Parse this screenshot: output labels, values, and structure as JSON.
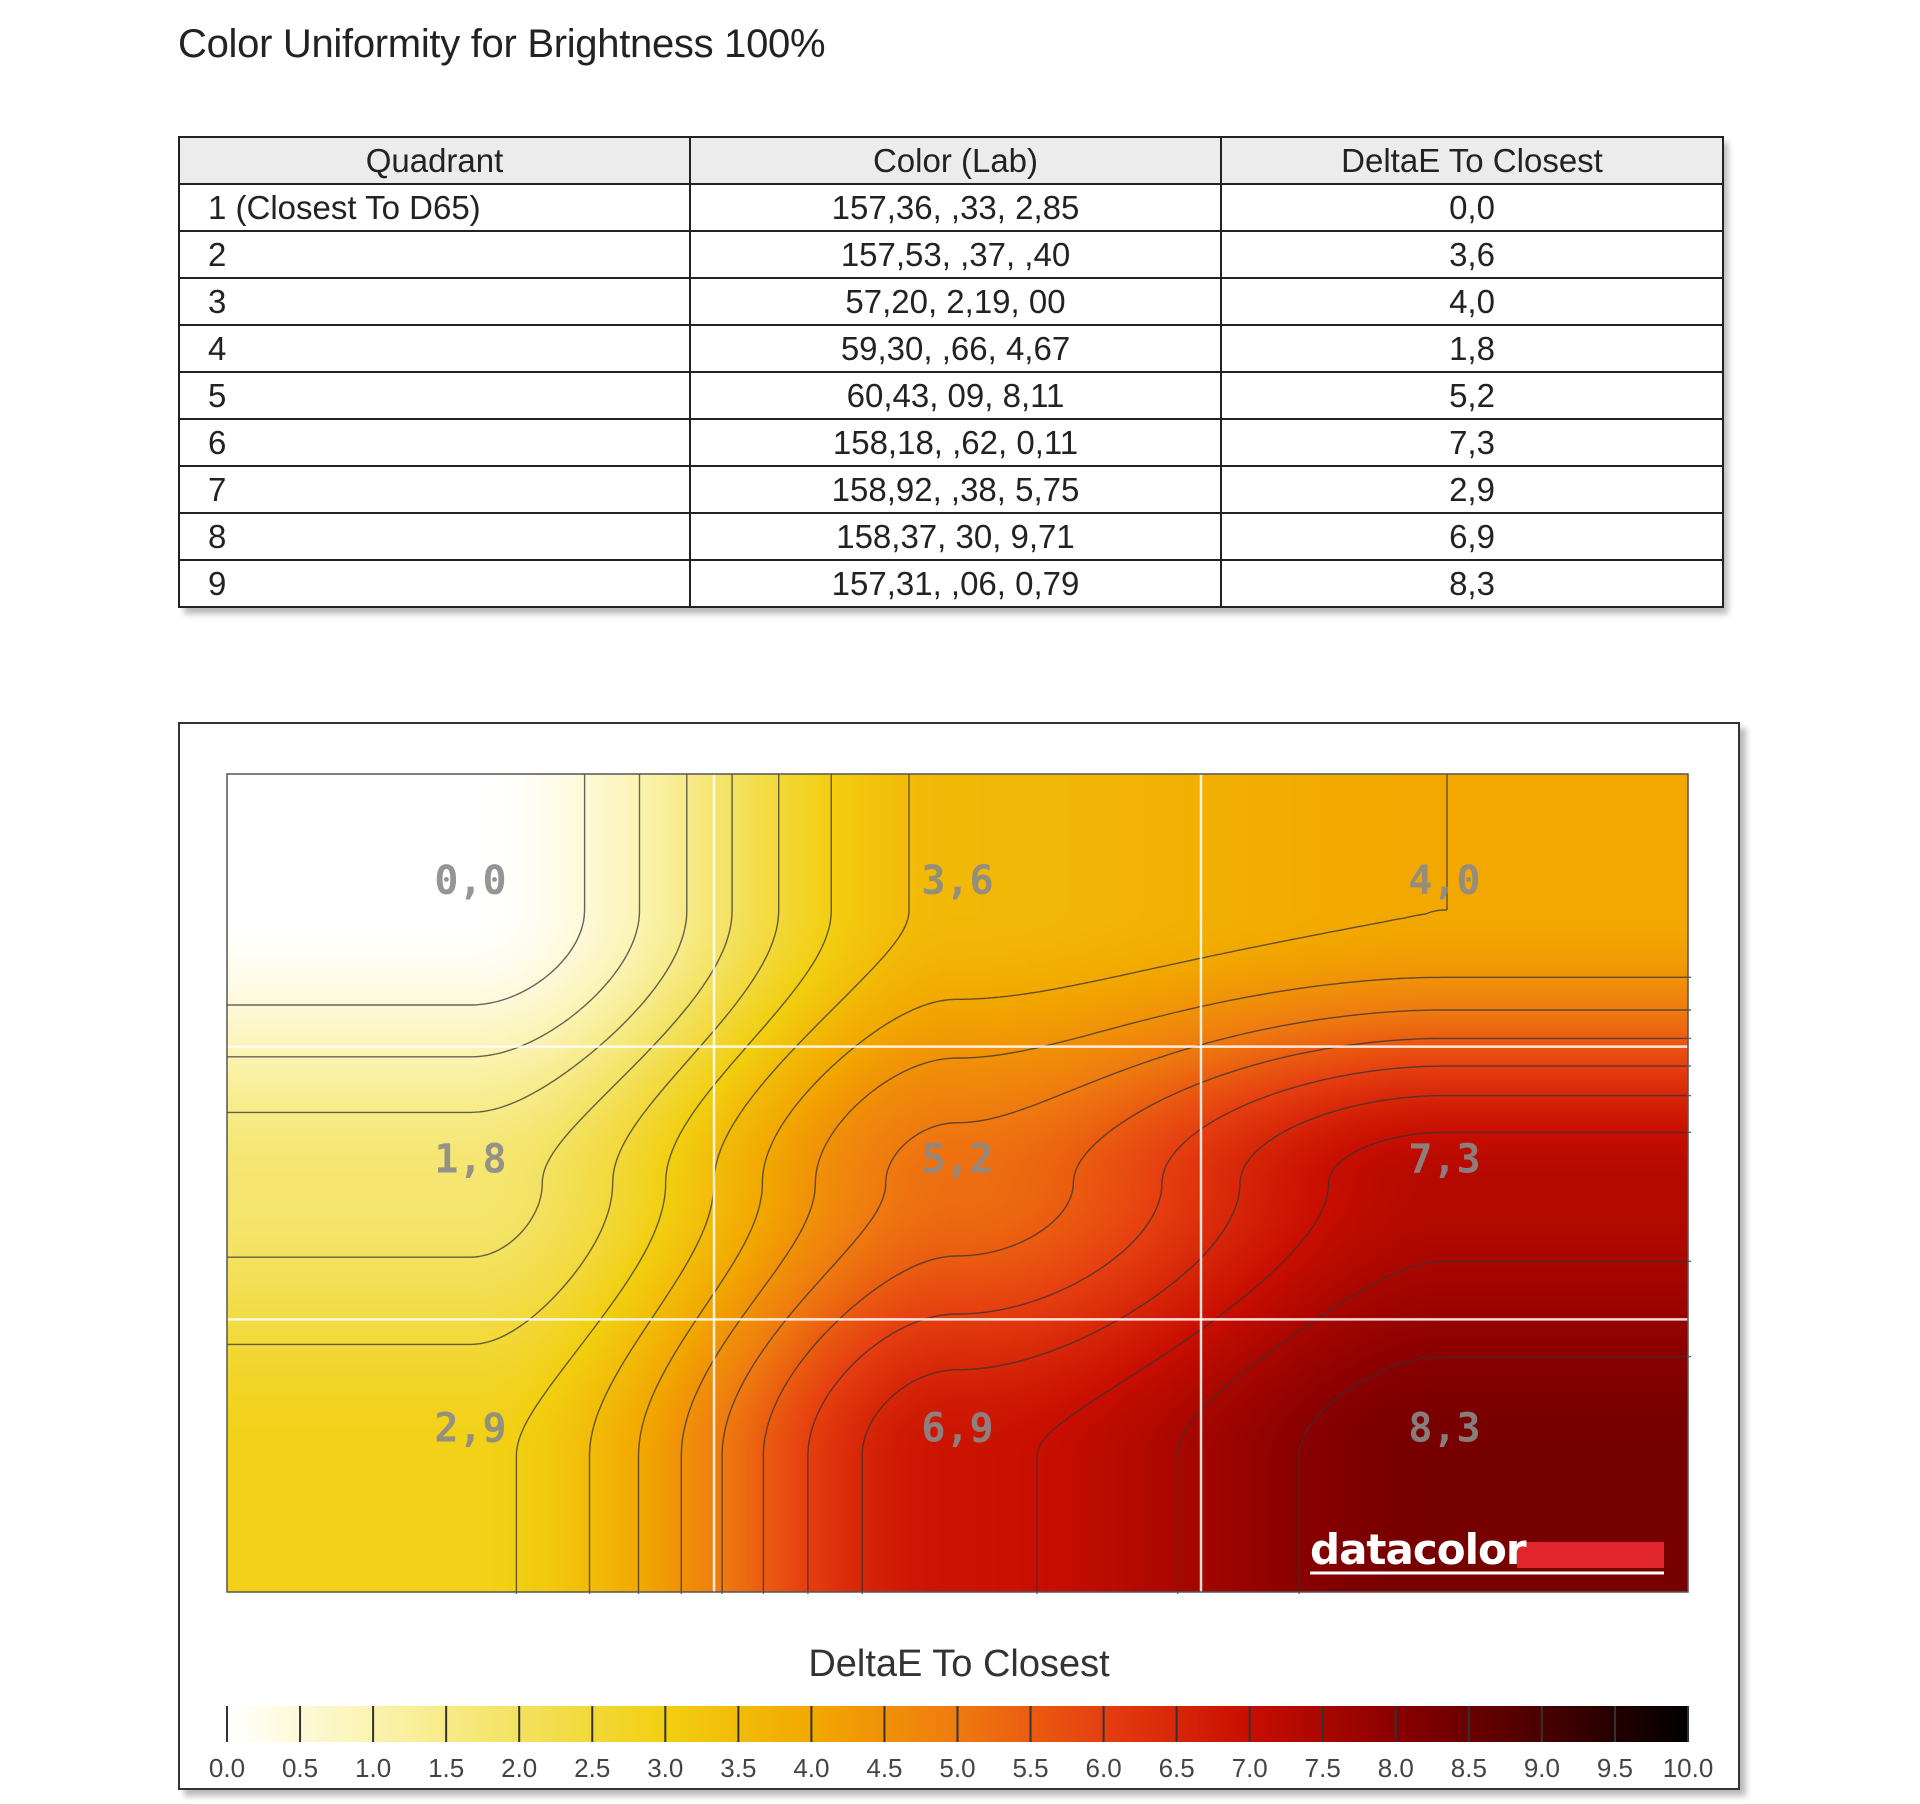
{
  "title": "Color Uniformity for Brightness 100%",
  "table": {
    "headers": [
      "Quadrant",
      "Color (Lab)",
      "DeltaE To Closest"
    ],
    "rows": [
      {
        "quadrant": "1 (Closest To D65)",
        "lab": "157,36,    ,33,   2,85",
        "delta": "0,0"
      },
      {
        "quadrant": "2",
        "lab": "157,53,    ,37,    ,40",
        "delta": "3,6"
      },
      {
        "quadrant": "3",
        "lab": "57,20,   2,19,     00",
        "delta": "4,0"
      },
      {
        "quadrant": "4",
        "lab": "59,30,    ,66,   4,67",
        "delta": "1,8"
      },
      {
        "quadrant": "5",
        "lab": "60,43,     09,   8,11",
        "delta": "5,2"
      },
      {
        "quadrant": "6",
        "lab": "158,18,    ,62,   0,11",
        "delta": "7,3"
      },
      {
        "quadrant": "7",
        "lab": "158,92,    ,38,   5,75",
        "delta": "2,9"
      },
      {
        "quadrant": "8",
        "lab": "158,37,     30,   9,71",
        "delta": "6,9"
      },
      {
        "quadrant": "9",
        "lab": "157,31,    ,06,   0,79",
        "delta": "8,3"
      }
    ]
  },
  "chart_data": {
    "type": "heatmap",
    "rows": 3,
    "cols": 3,
    "cells": [
      [
        0.0,
        3.6,
        4.0
      ],
      [
        1.8,
        5.2,
        7.3
      ],
      [
        2.9,
        6.9,
        8.3
      ]
    ],
    "cell_labels": [
      [
        "0,0",
        "3,6",
        "4,0"
      ],
      [
        "1,8",
        "5,2",
        "7,3"
      ],
      [
        "2,9",
        "6,9",
        "8,3"
      ]
    ],
    "legend_title": "DeltaE To Closest",
    "scale_min": 0.0,
    "scale_max": 10.0,
    "scale_ticks": [
      "0.0",
      "0.5",
      "1.0",
      "1.5",
      "2.0",
      "2.5",
      "3.0",
      "3.5",
      "4.0",
      "4.5",
      "5.0",
      "5.5",
      "6.0",
      "6.5",
      "7.0",
      "7.5",
      "8.0",
      "8.5",
      "9.0",
      "9.5",
      "10.0"
    ],
    "contour_step": 0.5,
    "logo": "datacolor",
    "colors": {
      "scale": [
        "#ffffff",
        "#fbf3b0",
        "#f3e260",
        "#f2cf10",
        "#f2a800",
        "#ef7a10",
        "#e63e10",
        "#c80e00",
        "#8a0000",
        "#4a0000",
        "#000000"
      ],
      "logo_bar": "#e0252c",
      "grid": "#ffffff",
      "contour": "#333333"
    }
  }
}
